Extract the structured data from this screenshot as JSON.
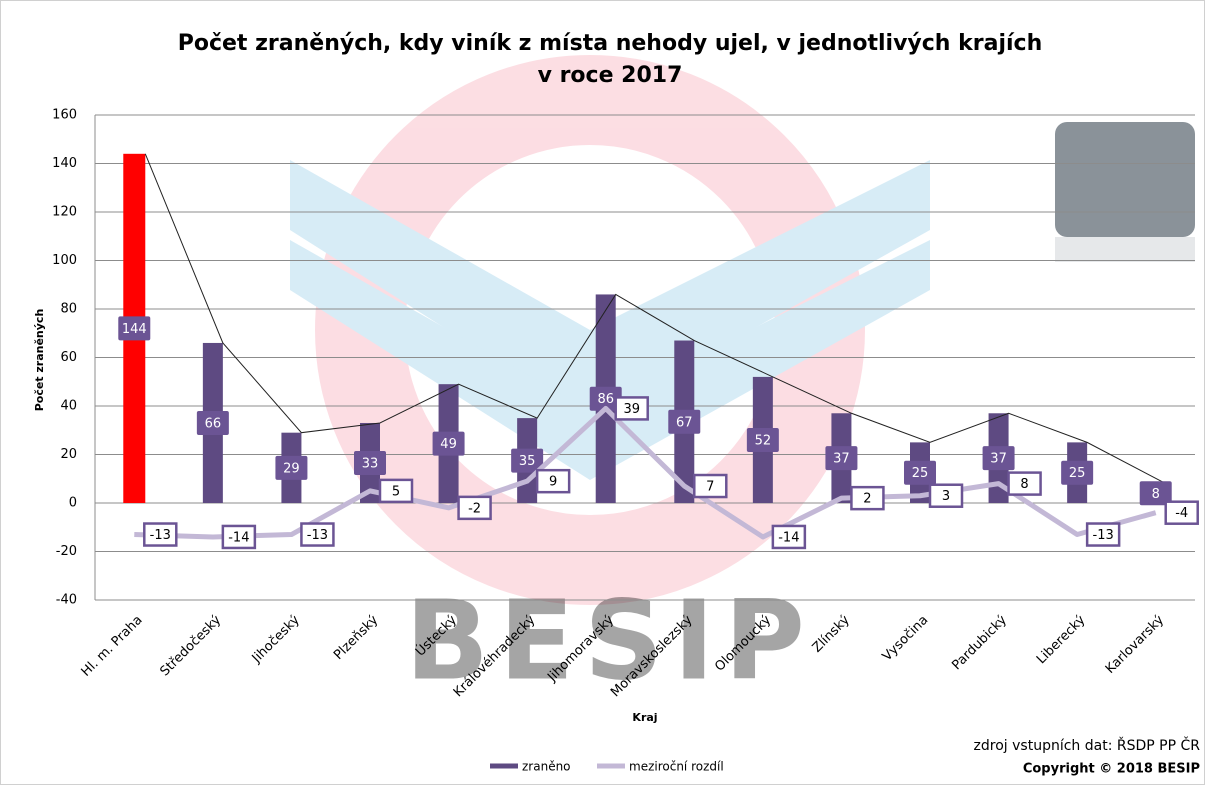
{
  "chart_data": {
    "type": "bar",
    "title": "Počet zraněných, kdy viník z místa nehody ujel, v jednotlivých krajích",
    "subtitle": "v roce 2017",
    "y_label": "Počet zraněných",
    "x_label": "Kraj",
    "watermark": "BESIP",
    "source": "zdroj vstupních dat: ŘSDP PP ČR",
    "copyright": "Copyright © 2018  BESIP",
    "categories": [
      "Hl. m. Praha",
      "Středočeský",
      "Jihočeský",
      "Plzeňský",
      "Ústecký",
      "Královéhradecký",
      "Jihomoravský",
      "Moravskoslezský",
      "Olomoucký",
      "Zlínský",
      "Vysočina",
      "Pardubický",
      "Liberecký",
      "Karlovarský"
    ],
    "series": [
      {
        "name": "zraněno",
        "type": "bar",
        "color": "#5e4a82",
        "colors": [
          "#ff0000",
          "#5e4a82",
          "#5e4a82",
          "#5e4a82",
          "#5e4a82",
          "#5e4a82",
          "#5e4a82",
          "#5e4a82",
          "#5e4a82",
          "#5e4a82",
          "#5e4a82",
          "#5e4a82",
          "#5e4a82",
          "#5e4a82"
        ],
        "values": [
          144,
          66,
          29,
          33,
          49,
          35,
          86,
          67,
          52,
          37,
          25,
          37,
          25,
          8
        ]
      },
      {
        "name": "meziroční rozdíl",
        "type": "line",
        "color": "#c3b8d6",
        "values": [
          -13,
          -14,
          -13,
          5,
          -2,
          9,
          39,
          7,
          -14,
          2,
          3,
          8,
          -13,
          -4
        ]
      }
    ],
    "ylim": [
      -40,
      160
    ],
    "yticks": [
      -40,
      -20,
      0,
      20,
      40,
      60,
      80,
      100,
      120,
      140,
      160
    ],
    "grid": true
  }
}
